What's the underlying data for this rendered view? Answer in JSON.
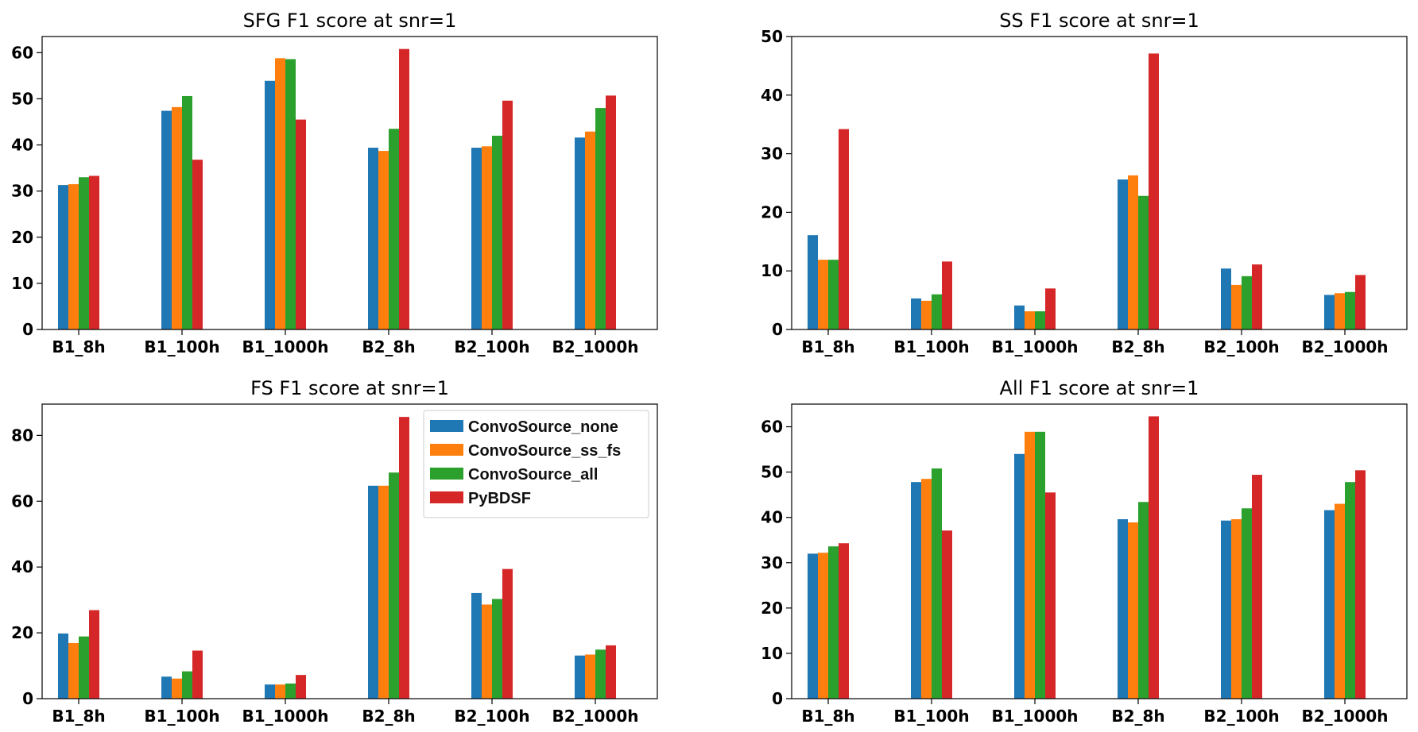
{
  "colors": {
    "ConvoSource_none": "#1f77b4",
    "ConvoSource_ss_fs": "#ff7f0e",
    "ConvoSource_all": "#2ca02c",
    "PyBDSF": "#d62728"
  },
  "legend": {
    "entries": [
      "ConvoSource_none",
      "ConvoSource_ss_fs",
      "ConvoSource_all",
      "PyBDSF"
    ],
    "placement": "upper-right"
  },
  "chart_data": [
    {
      "id": "sfg",
      "type": "bar",
      "title": "SFG F1 score at snr=1",
      "categories": [
        "B1_8h",
        "B1_100h",
        "B1_1000h",
        "B2_8h",
        "B2_100h",
        "B2_1000h"
      ],
      "ylim": [
        0,
        63.5
      ],
      "yticks": [
        0,
        10,
        20,
        30,
        40,
        50,
        60
      ],
      "xlabel": "",
      "ylabel": "",
      "series": [
        {
          "name": "ConvoSource_none",
          "values": [
            31.3,
            47.4,
            53.9,
            39.4,
            39.4,
            41.6
          ]
        },
        {
          "name": "ConvoSource_ss_fs",
          "values": [
            31.5,
            48.2,
            58.8,
            38.7,
            39.7,
            42.9
          ]
        },
        {
          "name": "ConvoSource_all",
          "values": [
            33.0,
            50.6,
            58.6,
            43.5,
            42.0,
            48.0
          ]
        },
        {
          "name": "PyBDSF",
          "values": [
            33.3,
            36.8,
            45.5,
            60.8,
            49.6,
            50.7
          ]
        }
      ]
    },
    {
      "id": "ss",
      "type": "bar",
      "title": "SS F1 score at snr=1",
      "categories": [
        "B1_8h",
        "B1_100h",
        "B1_1000h",
        "B2_8h",
        "B2_100h",
        "B2_1000h"
      ],
      "ylim": [
        0,
        50
      ],
      "yticks": [
        0,
        10,
        20,
        30,
        40,
        50
      ],
      "xlabel": "",
      "ylabel": "",
      "series": [
        {
          "name": "ConvoSource_none",
          "values": [
            16.1,
            5.3,
            4.1,
            25.6,
            10.4,
            5.9
          ]
        },
        {
          "name": "ConvoSource_ss_fs",
          "values": [
            11.9,
            4.9,
            3.1,
            26.3,
            7.6,
            6.2
          ]
        },
        {
          "name": "ConvoSource_all",
          "values": [
            11.9,
            6.0,
            3.1,
            22.8,
            9.1,
            6.4
          ]
        },
        {
          "name": "PyBDSF",
          "values": [
            34.2,
            11.6,
            7.0,
            47.1,
            11.1,
            9.3
          ]
        }
      ]
    },
    {
      "id": "fs",
      "type": "bar",
      "title": "FS F1 score at snr=1",
      "categories": [
        "B1_8h",
        "B1_100h",
        "B1_1000h",
        "B2_8h",
        "B2_100h",
        "B2_1000h"
      ],
      "ylim": [
        0,
        89.5
      ],
      "yticks": [
        0,
        20,
        40,
        60,
        80
      ],
      "xlabel": "",
      "ylabel": "",
      "series": [
        {
          "name": "ConvoSource_none",
          "values": [
            19.8,
            6.7,
            4.3,
            64.7,
            32.1,
            13.1
          ]
        },
        {
          "name": "ConvoSource_ss_fs",
          "values": [
            16.9,
            6.1,
            4.3,
            64.7,
            28.6,
            13.4
          ]
        },
        {
          "name": "ConvoSource_all",
          "values": [
            18.9,
            8.3,
            4.6,
            68.7,
            30.3,
            14.9
          ]
        },
        {
          "name": "PyBDSF",
          "values": [
            26.9,
            14.6,
            7.2,
            85.6,
            39.4,
            16.2
          ]
        }
      ]
    },
    {
      "id": "all",
      "type": "bar",
      "title": "All F1 score at snr=1",
      "categories": [
        "B1_8h",
        "B1_100h",
        "B1_1000h",
        "B2_8h",
        "B2_100h",
        "B2_1000h"
      ],
      "ylim": [
        0,
        65
      ],
      "yticks": [
        0,
        10,
        20,
        30,
        40,
        50,
        60
      ],
      "xlabel": "",
      "ylabel": "",
      "series": [
        {
          "name": "ConvoSource_none",
          "values": [
            32.0,
            47.8,
            54.0,
            39.6,
            39.3,
            41.6
          ]
        },
        {
          "name": "ConvoSource_ss_fs",
          "values": [
            32.2,
            48.5,
            58.9,
            38.9,
            39.6,
            43.0
          ]
        },
        {
          "name": "ConvoSource_all",
          "values": [
            33.6,
            50.8,
            58.9,
            43.4,
            42.0,
            47.8
          ]
        },
        {
          "name": "PyBDSF",
          "values": [
            34.3,
            37.1,
            45.5,
            62.3,
            49.4,
            50.4
          ]
        }
      ]
    }
  ]
}
